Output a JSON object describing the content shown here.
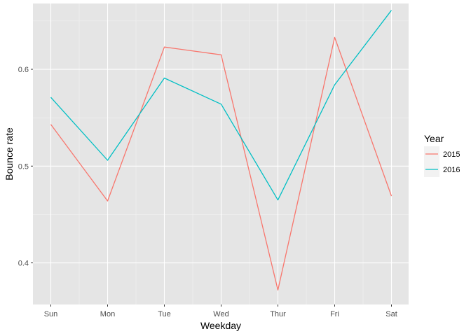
{
  "chart_data": {
    "type": "line",
    "title": "",
    "xlabel": "Weekday",
    "ylabel": "Bounce rate",
    "categories": [
      "Sun",
      "Mon",
      "Tue",
      "Wed",
      "Thur",
      "Fri",
      "Sat"
    ],
    "y_ticks": [
      0.4,
      0.5,
      0.6
    ],
    "y_tick_labels": [
      "0.4",
      "0.5",
      "0.6"
    ],
    "ylim": [
      0.357,
      0.668
    ],
    "grid": true,
    "panel_background": "#e5e5e5",
    "gridline_color": "#ffffff",
    "legend": {
      "title": "Year",
      "position": "right",
      "key_background": "#f2f2f2"
    },
    "series": [
      {
        "name": "2015",
        "color": "#f8766d",
        "values": [
          0.543,
          0.464,
          0.623,
          0.615,
          0.372,
          0.633,
          0.469
        ]
      },
      {
        "name": "2016",
        "color": "#00bfc4",
        "values": [
          0.571,
          0.506,
          0.591,
          0.564,
          0.465,
          0.584,
          0.661
        ]
      }
    ]
  }
}
